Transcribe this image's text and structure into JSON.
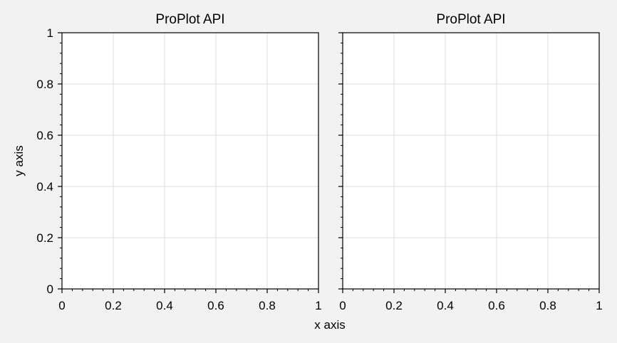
{
  "figure": {
    "background": "#f2f2f2",
    "xlabel": "x axis",
    "ylabel": "y axis"
  },
  "chart_data": [
    {
      "type": "line",
      "title": "ProPlot API",
      "series": [],
      "xlim": [
        0,
        1
      ],
      "ylim": [
        0,
        1
      ],
      "xticks": [
        0,
        0.2,
        0.4,
        0.6,
        0.8,
        1
      ],
      "xtick_labels": [
        "0",
        "0.2",
        "0.4",
        "0.6",
        "0.8",
        "1"
      ],
      "yticks": [
        0,
        0.2,
        0.4,
        0.6,
        0.8,
        1
      ],
      "ytick_labels": [
        "0",
        "0.2",
        "0.4",
        "0.6",
        "0.8",
        "1"
      ],
      "show_ytick_labels": true,
      "grid": true
    },
    {
      "type": "line",
      "title": "ProPlot API",
      "series": [],
      "xlim": [
        0,
        1
      ],
      "ylim": [
        0,
        1
      ],
      "xticks": [
        0,
        0.2,
        0.4,
        0.6,
        0.8,
        1
      ],
      "xtick_labels": [
        "0",
        "0.2",
        "0.4",
        "0.6",
        "0.8",
        "1"
      ],
      "yticks": [
        0,
        0.2,
        0.4,
        0.6,
        0.8,
        1
      ],
      "ytick_labels": [
        "0",
        "0.2",
        "0.4",
        "0.6",
        "0.8",
        "1"
      ],
      "show_ytick_labels": false,
      "grid": true
    }
  ]
}
